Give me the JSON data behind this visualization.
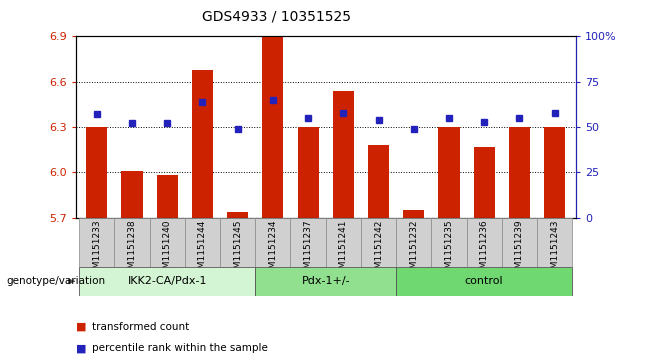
{
  "title": "GDS4933 / 10351525",
  "samples": [
    "GSM1151233",
    "GSM1151238",
    "GSM1151240",
    "GSM1151244",
    "GSM1151245",
    "GSM1151234",
    "GSM1151237",
    "GSM1151241",
    "GSM1151242",
    "GSM1151232",
    "GSM1151235",
    "GSM1151236",
    "GSM1151239",
    "GSM1151243"
  ],
  "transformed_count": [
    6.3,
    6.01,
    5.98,
    6.68,
    5.74,
    6.9,
    6.3,
    6.54,
    6.18,
    5.75,
    6.3,
    6.17,
    6.3,
    6.3
  ],
  "percentile_rank": [
    57,
    52,
    52,
    64,
    49,
    65,
    55,
    58,
    54,
    49,
    55,
    53,
    55,
    58
  ],
  "groups": [
    {
      "label": "IKK2-CA/Pdx-1",
      "start": 0,
      "end": 5,
      "color": "#d4f5d4"
    },
    {
      "label": "Pdx-1+/-",
      "start": 5,
      "end": 9,
      "color": "#90e090"
    },
    {
      "label": "control",
      "start": 9,
      "end": 14,
      "color": "#70d870"
    }
  ],
  "bar_color": "#cc2200",
  "dot_color": "#2222bb",
  "ymin": 5.7,
  "ymax": 6.9,
  "yticks": [
    5.7,
    6.0,
    6.3,
    6.6,
    6.9
  ],
  "right_yticks": [
    0,
    25,
    50,
    75,
    100
  ],
  "right_ylabels": [
    "0",
    "25",
    "50",
    "75",
    "100%"
  ],
  "grid_values": [
    6.0,
    6.3,
    6.6
  ],
  "xlabel_area_color": "#d0d0d0",
  "legend_red_label": "transformed count",
  "legend_blue_label": "percentile rank within the sample",
  "genotype_label": "genotype/variation"
}
